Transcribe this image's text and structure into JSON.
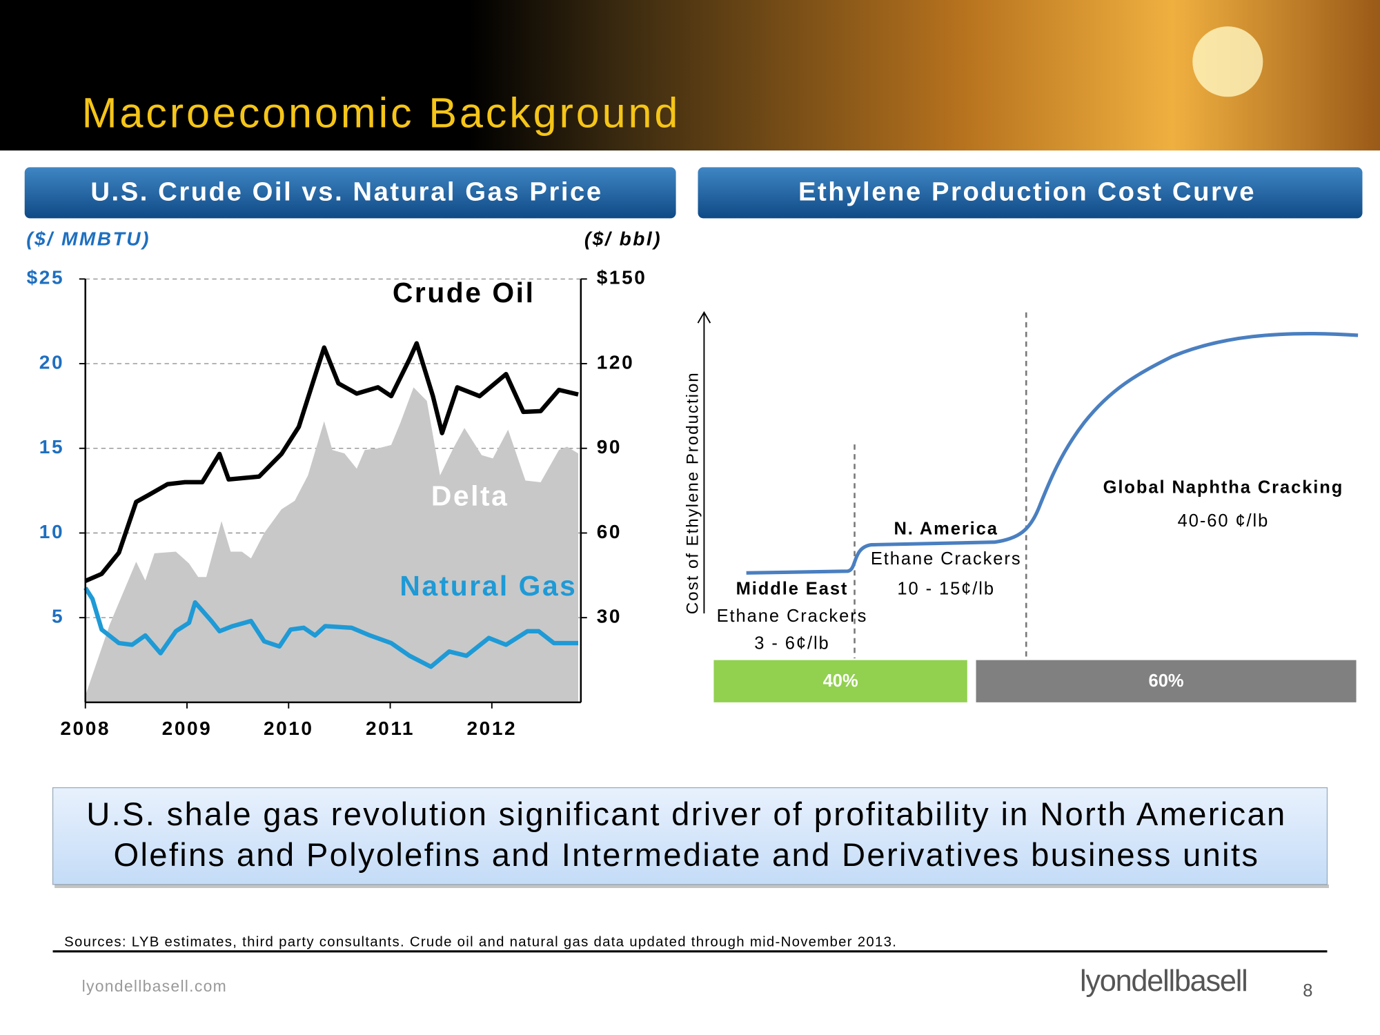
{
  "header": {
    "title": "Macroeconomic Background"
  },
  "chart_data": [
    {
      "type": "line-area",
      "title": "U.S. Crude Oil vs. Natural Gas Price",
      "y_label": "($/ MMBTU)",
      "y2_label": "($/ bbl)",
      "xlim": [
        2008,
        2012.85
      ],
      "xticks": [
        2008,
        2009,
        2010,
        2011,
        2012
      ],
      "ylim": [
        0,
        25
      ],
      "yticks": [
        5,
        10,
        15,
        20,
        {
          "value": 25,
          "label": "$25"
        }
      ],
      "y2lim": [
        0,
        150
      ],
      "y2ticks": [
        30,
        60,
        90,
        120,
        {
          "value": 150,
          "label": "$150"
        }
      ],
      "grid": true,
      "series": [
        {
          "name": "Delta",
          "kind": "area",
          "color": "#c8c8c8",
          "axis": "y",
          "x": [
            2008.0,
            2008.24,
            2008.5,
            2008.59,
            2008.68,
            2008.89,
            2009.02,
            2009.11,
            2009.19,
            2009.34,
            2009.43,
            2009.54,
            2009.63,
            2009.76,
            2009.93,
            2010.06,
            2010.19,
            2010.35,
            2010.43,
            2010.55,
            2010.67,
            2010.75,
            2010.88,
            2011.01,
            2011.1,
            2011.23,
            2011.36,
            2011.49,
            2011.62,
            2011.73,
            2011.9,
            2012.01,
            2012.16,
            2012.33,
            2012.48,
            2012.66,
            2012.74,
            2012.85
          ],
          "values": [
            0.4,
            4.6,
            8.3,
            7.2,
            8.8,
            8.9,
            8.2,
            7.4,
            7.4,
            10.7,
            8.9,
            8.9,
            8.5,
            10.0,
            11.4,
            11.9,
            13.4,
            16.6,
            14.9,
            14.7,
            13.8,
            14.9,
            15.0,
            15.2,
            16.5,
            18.6,
            17.8,
            13.4,
            15.0,
            16.2,
            14.6,
            14.4,
            16.1,
            13.1,
            13.0,
            14.9,
            15.1,
            14.7
          ]
        },
        {
          "name": "Crude Oil",
          "kind": "line",
          "color": "#000000",
          "axis": "y2",
          "x": [
            2008.0,
            2008.16,
            2008.33,
            2008.5,
            2008.63,
            2008.81,
            2008.98,
            2009.15,
            2009.32,
            2009.41,
            2009.71,
            2009.93,
            2010.1,
            2010.28,
            2010.35,
            2010.49,
            2010.67,
            2010.88,
            2011.01,
            2011.19,
            2011.26,
            2011.42,
            2011.51,
            2011.66,
            2011.88,
            2012.14,
            2012.31,
            2012.48,
            2012.66,
            2012.85
          ],
          "values": [
            43,
            45.5,
            53,
            71,
            73.6,
            77.3,
            78,
            78,
            88,
            79,
            80,
            88,
            97.6,
            118,
            125.7,
            113,
            109.4,
            111.6,
            108.5,
            121.6,
            127.2,
            108.5,
            95.4,
            111.6,
            108.5,
            116.3,
            102.9,
            103.2,
            110.7,
            109.1
          ]
        },
        {
          "name": "Natural Gas",
          "kind": "line",
          "color": "#1e9ad6",
          "axis": "y",
          "x": [
            2008.0,
            2008.07,
            2008.16,
            2008.33,
            2008.46,
            2008.59,
            2008.74,
            2008.89,
            2009.02,
            2009.08,
            2009.24,
            2009.32,
            2009.45,
            2009.63,
            2009.76,
            2009.91,
            2010.02,
            2010.15,
            2010.26,
            2010.36,
            2010.62,
            2010.8,
            2011.01,
            2011.19,
            2011.4,
            2011.58,
            2011.75,
            2011.97,
            2012.14,
            2012.35,
            2012.46,
            2012.61,
            2012.85
          ],
          "values": [
            6.76,
            6.1,
            4.3,
            3.5,
            3.4,
            3.95,
            2.9,
            4.2,
            4.7,
            5.9,
            4.8,
            4.2,
            4.5,
            4.8,
            3.6,
            3.3,
            4.3,
            4.4,
            3.95,
            4.5,
            4.4,
            3.95,
            3.5,
            2.75,
            2.1,
            3.0,
            2.75,
            3.8,
            3.4,
            4.2,
            4.2,
            3.5,
            3.5
          ]
        }
      ]
    },
    {
      "type": "share-bar",
      "title": "Ethylene Production Cost Curve",
      "y_label": "Cost of Ethylene Production",
      "values": [
        40,
        60
      ],
      "value_labels": [
        "40%",
        "60%"
      ],
      "colors": [
        "#92d050",
        "#808080"
      ],
      "annotations": [
        {
          "lines": [
            "Middle East",
            "Ethane Crackers",
            "3 - 6¢/lb"
          ]
        },
        {
          "lines": [
            "N. America",
            "Ethane Crackers",
            "10 - 15¢/lb"
          ]
        },
        {
          "lines": [
            "Global Naphtha Cracking",
            "40-60 ¢/lb"
          ]
        }
      ]
    }
  ],
  "callout": {
    "lines": [
      "U.S. shale gas revolution significant driver of profitability in North American",
      "Olefins and Polyolefins and Intermediate and Derivatives business units"
    ]
  },
  "footer": {
    "sources": "Sources: LYB estimates, third party consultants. Crude oil and natural gas data updated through mid-November 2013.",
    "website": "lyondellbasell.com",
    "logo": "lyondellbasell",
    "page": 8
  }
}
